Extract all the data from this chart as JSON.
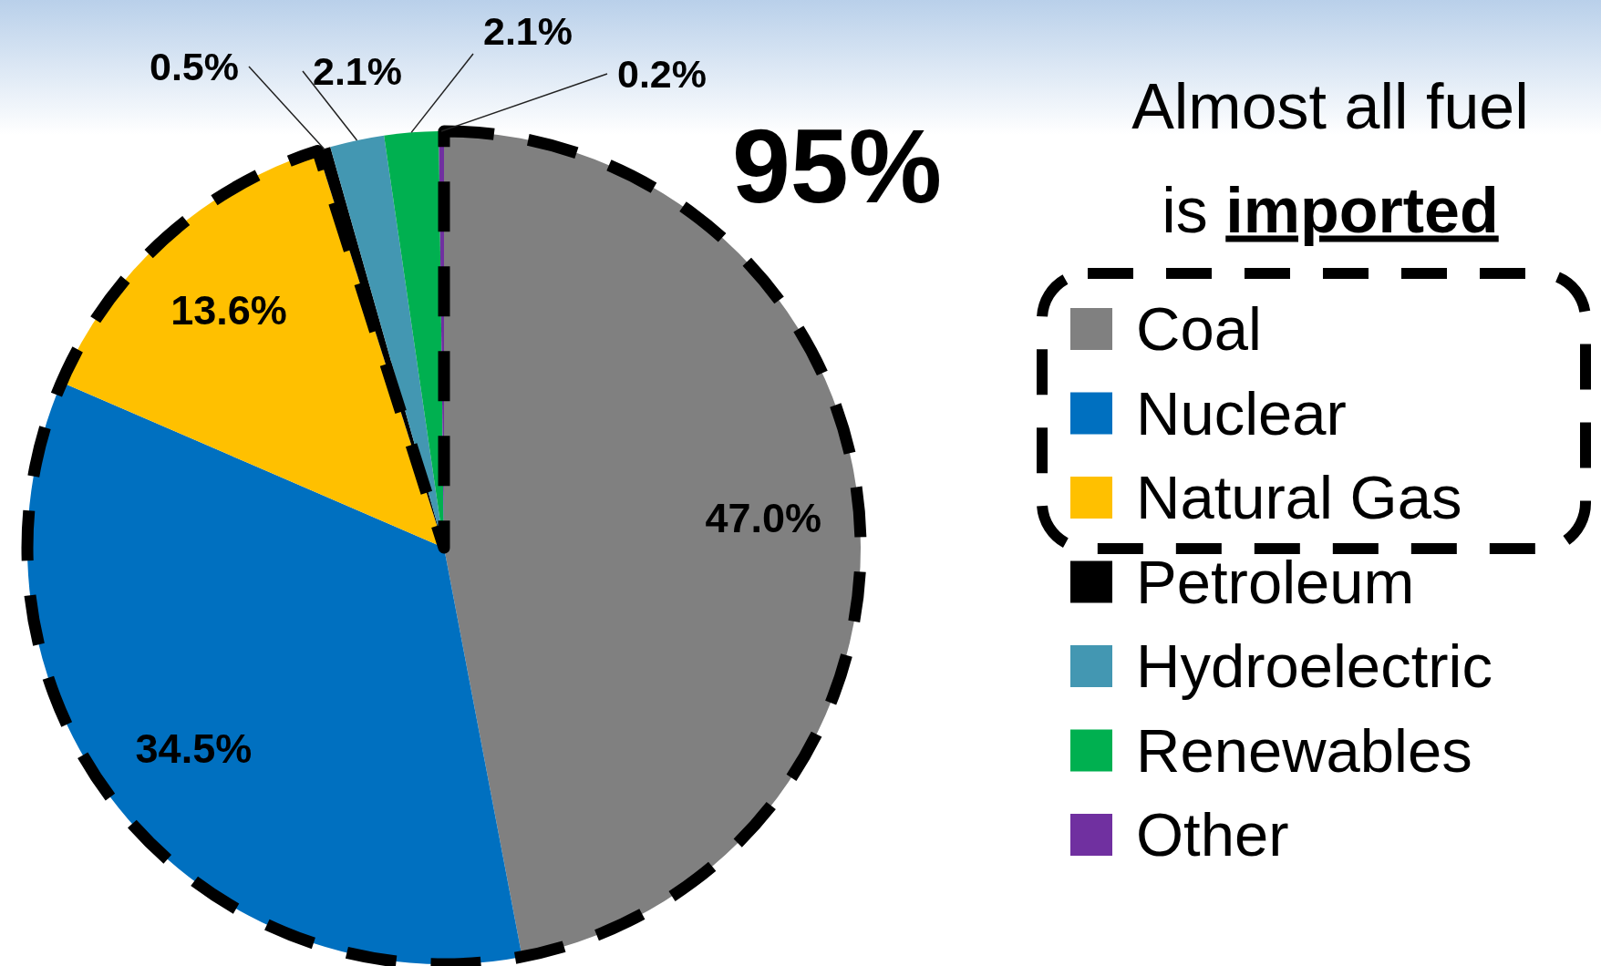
{
  "chart_data": {
    "type": "pie",
    "categories": [
      "Coal",
      "Nuclear",
      "Natural Gas",
      "Petroleum",
      "Hydroelectric",
      "Renewables",
      "Other"
    ],
    "values": [
      47.0,
      34.5,
      13.6,
      0.5,
      2.1,
      2.1,
      0.2
    ],
    "colors": [
      "#808080",
      "#0070c0",
      "#ffc000",
      "#000000",
      "#4397b2",
      "#00b050",
      "#7030a0"
    ],
    "value_labels": [
      "47.0%",
      "34.5%",
      "13.6%",
      "0.5%",
      "2.1%",
      "2.1%",
      "0.2%"
    ],
    "legend": "right",
    "annotations": [
      "95%",
      "Almost all fuel",
      "is imported"
    ]
  }
}
